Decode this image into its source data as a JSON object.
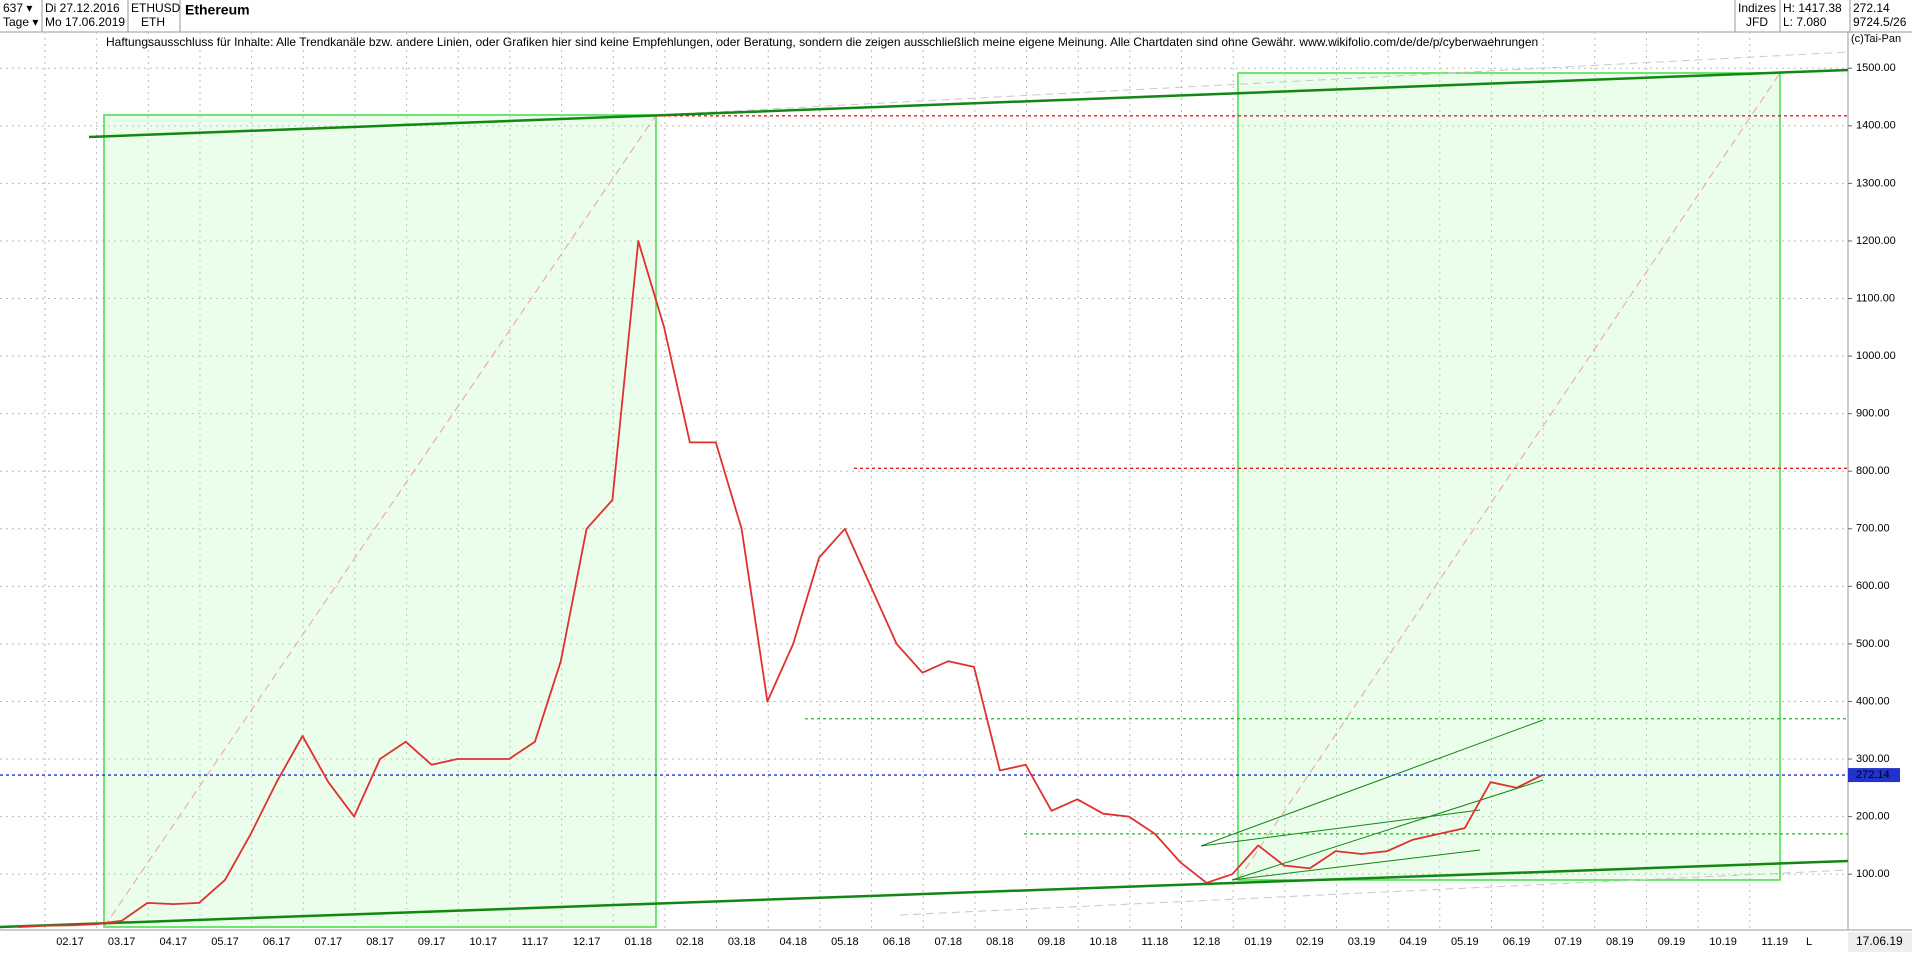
{
  "header": {
    "count": "637 ▾",
    "start_date": "Di 27.12.2016",
    "period": "Tage ▾",
    "end_date": "Mo 17.06.2019",
    "symbol": "ETHUSD",
    "symbol_short": "ETH",
    "name": "Ethereum",
    "market": "Indizes",
    "broker": "JFD",
    "high": "H: 1417.38",
    "low": "L: 7.080",
    "last": "272.14",
    "extra": "9724.5/26",
    "disclaimer": "Haftungsausschluss für Inhalte: Alle Trendkanäle bzw. andere Linien, oder Grafiken hier sind keine Empfehlungen, oder Beratung, sondern die zeigen ausschließlich meine eigene Meinung. Alle Chartdaten sind ohne Gewähr.  www.wikifolio.com/de/de/p/cyberwaehrungen",
    "copyright": "(c)Tai-Pan",
    "cursor_date": "17.06.19",
    "scale_mode": "L"
  },
  "chart_data": {
    "type": "line",
    "categories": [
      null,
      null,
      "02.17",
      null,
      "03.17",
      null,
      "04.17",
      null,
      "05.17",
      null,
      "06.17",
      null,
      "07.17",
      null,
      "08.17",
      null,
      "09.17",
      null,
      "10.17",
      null,
      "11.17",
      null,
      "12.17",
      null,
      "01.18",
      null,
      "02.18",
      null,
      "03.18",
      null,
      "04.18",
      null,
      "05.18",
      null,
      "06.18",
      null,
      "07.18",
      null,
      "08.18",
      null,
      "09.18",
      null,
      "10.18",
      null,
      "11.18",
      null,
      "12.18",
      null,
      "01.19",
      null,
      "02.19",
      null,
      "03.19",
      null,
      "04.19",
      null,
      "05.19",
      null,
      "06.19",
      null,
      "07.19",
      null,
      "08.19",
      null,
      "09.19",
      null,
      "10.19",
      null,
      "11.19",
      null
    ],
    "series": [
      {
        "name": "ETHUSD",
        "color": "#e03030",
        "values": [
          8,
          10.5,
          11,
          13,
          19,
          50,
          48,
          50,
          90,
          170,
          260,
          340,
          260,
          200,
          300,
          330,
          290,
          300,
          300,
          300,
          330,
          470,
          700,
          750,
          1200,
          1050,
          850,
          850,
          700,
          400,
          500,
          650,
          700,
          600,
          500,
          450,
          470,
          460,
          280,
          290,
          210,
          230,
          205,
          200,
          170,
          120,
          85,
          100,
          150,
          115,
          110,
          140,
          135,
          140,
          160,
          170,
          180,
          260,
          250,
          272.14,
          null,
          null,
          null,
          null,
          null,
          null,
          null,
          null,
          null,
          null
        ]
      }
    ],
    "hlines": [
      {
        "value": 1417.38,
        "color": "#dd2222"
      },
      {
        "value": 805,
        "color": "#dd2222"
      },
      {
        "value": 370,
        "color": "#22bb22"
      },
      {
        "value": 170,
        "color": "#22bb22"
      },
      {
        "value": 272.14,
        "color": "#2233cc",
        "label": "272.14"
      }
    ],
    "ylim": [
      3,
      1563
    ],
    "yticks": [
      {
        "value": 100,
        "label": "100.00"
      },
      {
        "value": 200,
        "label": "200.00"
      },
      {
        "value": 300,
        "label": "300.00"
      },
      {
        "value": 400,
        "label": "400.00"
      },
      {
        "value": 500,
        "label": "500.00"
      },
      {
        "value": 600,
        "label": "600.00"
      },
      {
        "value": 700,
        "label": "700.00"
      },
      {
        "value": 800,
        "label": "800.00"
      },
      {
        "value": 900,
        "label": "900.00"
      },
      {
        "value": 1000,
        "label": "1000.00"
      },
      {
        "value": 1100,
        "label": "1100.00"
      },
      {
        "value": 1200,
        "label": "1200.00"
      },
      {
        "value": 1300,
        "label": "1300.00"
      },
      {
        "value": 1400,
        "label": "1400.00"
      },
      {
        "value": 1500,
        "label": "1500.00"
      }
    ],
    "grid": true
  }
}
